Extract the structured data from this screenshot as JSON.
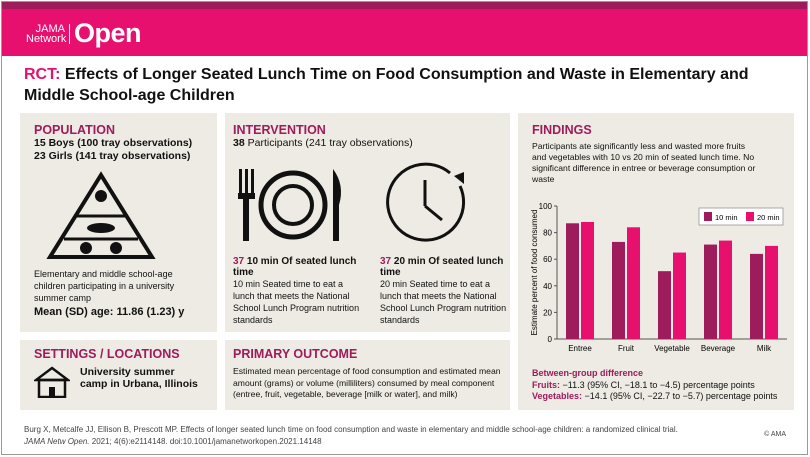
{
  "header": {
    "logo_small": "JAMA Network",
    "logo_big": "Open"
  },
  "title": {
    "tag": "RCT:",
    "text": "Effects of Longer Seated Lunch Time on Food Consumption and Waste in Elementary and Middle School-age Children"
  },
  "population": {
    "heading": "POPULATION",
    "line1": "15 Boys  (100 tray observations)",
    "line2": "23 Girls (141 tray observations)",
    "desc": "Elementary and middle school-age children participating in a university summer camp",
    "age": "Mean (SD) age: 11.86 (1.23) y"
  },
  "intervention": {
    "heading": "INTERVENTION",
    "participants_num": "38",
    "participants_text": "Participants (241 tray observations)",
    "arms": [
      {
        "n": "37",
        "label": "10 min Of seated lunch time",
        "desc": "10 min Seated time to eat a lunch that meets the National School Lunch Program nutrition standards"
      },
      {
        "n": "37",
        "label": "20 min Of seated lunch time",
        "desc": "20 min Seated time to eat a lunch that meets the National School Lunch Program nutrition standards"
      }
    ]
  },
  "settings": {
    "heading": "SETTINGS / LOCATIONS",
    "text": "University summer camp in Urbana, Illinois"
  },
  "outcome": {
    "heading": "PRIMARY OUTCOME",
    "text": "Estimated mean percentage of food consumption and estimated mean amount (grams) or volume (milliliters) consumed by meal component (entree, fruit, vegetable, beverage [milk or water], and milk)"
  },
  "findings": {
    "heading": "FINDINGS",
    "text": "Participants ate significantly less and wasted more fruits and vegetables with 10 vs 20 min of seated lunch time. No significant difference in entree or beverage consumption or waste",
    "diff_heading": "Between-group difference",
    "fruits_label": "Fruits:",
    "fruits_text": "−11.3 (95% CI, −18.1 to −4.5) percentage points",
    "veg_label": "Vegetables:",
    "veg_text": "−14.1 (95% CI, −22.7 to −5.7) percentage points"
  },
  "chart_data": {
    "type": "bar",
    "categories": [
      "Entree",
      "Fruit",
      "Vegetable",
      "Beverage",
      "Milk"
    ],
    "series": [
      {
        "name": "10 min",
        "values": [
          87,
          73,
          51,
          71,
          64
        ],
        "color": "#9e1b5c"
      },
      {
        "name": "20 min",
        "values": [
          88,
          84,
          65,
          74,
          70
        ],
        "color": "#e8106f"
      }
    ],
    "ylabel": "Estimate percent of food consumed",
    "ylim": [
      0,
      100
    ],
    "yticks": [
      0,
      20,
      40,
      60,
      80,
      100
    ],
    "grid": false,
    "legend": "top-right"
  },
  "footer": {
    "citation": "Burg X, Metcalfe JJ, Ellison B, Prescott MP. Effects of longer seated lunch time on food consumption and waste in elementary and middle school-age children: a randomized clinical trial.",
    "journal": "JAMA Netw Open.",
    "ref": " 2021; 4(6):e2114148. doi:10.1001/jamanetworkopen.2021.14148",
    "copyright": "© AMA"
  },
  "colors": {
    "magenta": "#e8106f",
    "plum": "#9e1b5c",
    "panel": "#edebe3"
  }
}
